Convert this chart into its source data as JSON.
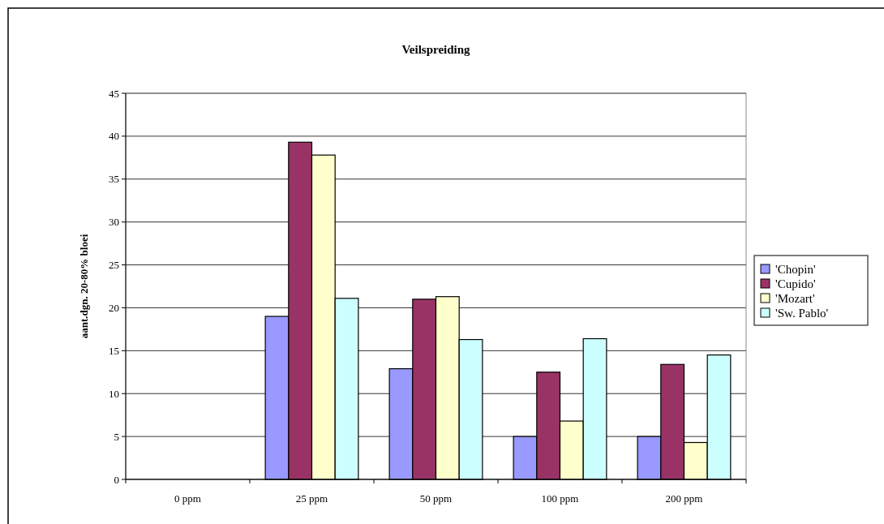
{
  "chart_data": {
    "type": "bar",
    "title": "Veilspreiding",
    "ylabel": "aant.dgn. 20-80% bloei",
    "categories": [
      "0 ppm",
      "25 ppm",
      "50 ppm",
      "100 ppm",
      "200 ppm"
    ],
    "series": [
      {
        "name": "'Chopin'",
        "color": "#9999ff",
        "values": [
          null,
          19,
          12.9,
          5,
          5
        ]
      },
      {
        "name": "'Cupido'",
        "color": "#993366",
        "values": [
          null,
          39.3,
          21,
          12.5,
          13.4
        ]
      },
      {
        "name": "'Mozart'",
        "color": "#ffffcc",
        "values": [
          null,
          37.8,
          21.3,
          6.8,
          4.3
        ]
      },
      {
        "name": "'Sw. Pablo'",
        "color": "#ccffff",
        "values": [
          null,
          21.1,
          16.3,
          16.4,
          14.5
        ]
      }
    ],
    "ylim": [
      0,
      45
    ],
    "yticks": [
      0,
      5,
      10,
      15,
      20,
      25,
      30,
      35,
      40,
      45
    ],
    "grid": "y",
    "legend": "right"
  }
}
